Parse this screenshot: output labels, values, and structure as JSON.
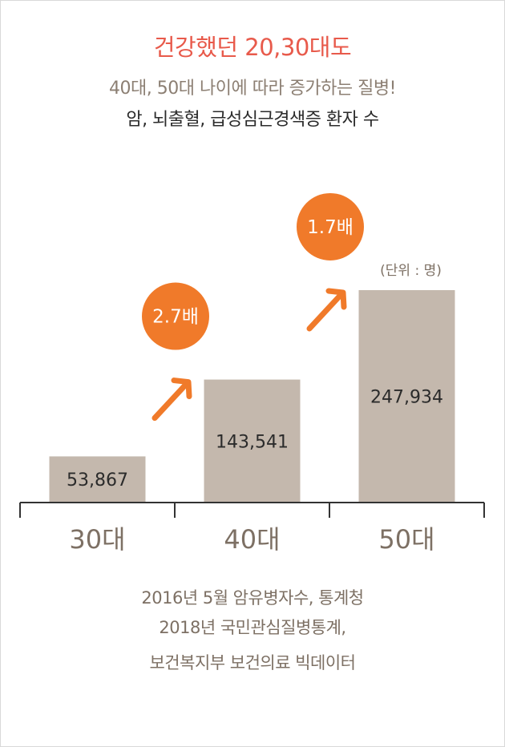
{
  "title": "건강했던 20,30대도",
  "subtitle": "40대, 50대 나이에 따라 증가하는 질병!",
  "subtitle2": "암, 뇌출혈, 급성심근경색증 환자 수",
  "unit_label": "(단위 : 명)",
  "colors": {
    "title": "#e85a4b",
    "bar": "#c4b8ad",
    "circle": "#f07a2a",
    "axis": "#333333",
    "tick_label": "#7d7064"
  },
  "chart_data": {
    "type": "bar",
    "categories": [
      "30대",
      "40대",
      "50대"
    ],
    "values": [
      53867,
      143541,
      247934
    ],
    "value_labels": [
      "53,867",
      "143,541",
      "247,934"
    ],
    "ylim": [
      0,
      290000
    ],
    "grid": false,
    "legend": "none",
    "annotations": [
      {
        "text": "2.7배",
        "between": [
          "30대",
          "40대"
        ]
      },
      {
        "text": "1.7배",
        "between": [
          "40대",
          "50대"
        ]
      }
    ]
  },
  "sources": [
    "2016년 5월 암유병자수, 통계청",
    "2018년 국민관심질병통계,",
    "보건복지부 보건의료 빅데이터"
  ]
}
